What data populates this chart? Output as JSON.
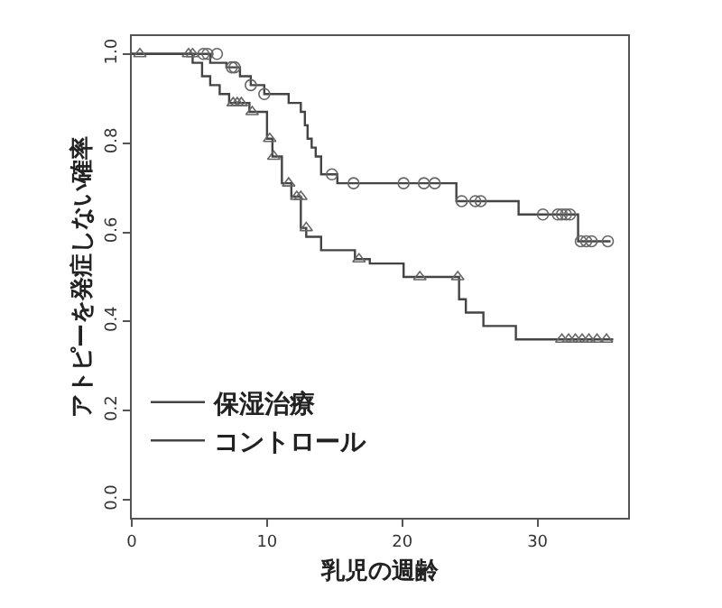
{
  "chart_data": {
    "type": "step",
    "xlabel": "乳児の週齢",
    "ylabel": "アトピーを発症しない確率",
    "xlim": [
      0,
      36.7
    ],
    "ylim": [
      -0.04,
      1.04
    ],
    "xticks": [
      0,
      10,
      20,
      30
    ],
    "yticks": [
      {
        "value": 0,
        "label": "0.0"
      },
      {
        "value": 0.2,
        "label": "0.2"
      },
      {
        "value": 0.4,
        "label": "0.4"
      },
      {
        "value": 0.6,
        "label": "0.6"
      },
      {
        "value": 0.8,
        "label": "0.8"
      },
      {
        "value": 1,
        "label": "1.0"
      }
    ],
    "legend": "bottom left",
    "line_style": "solid",
    "series": [
      {
        "name": "保湿治療",
        "color": "#444444",
        "marker": "none",
        "x": [
          0,
          5.8,
          7.0,
          8.0,
          8.8,
          9.8,
          11.6,
          12.5,
          12.8,
          13.0,
          13.3,
          13.6,
          14.0,
          15.2,
          24.0,
          28.6,
          33.0,
          35.4
        ],
        "values": [
          1.0,
          0.98,
          0.97,
          0.95,
          0.93,
          0.91,
          0.89,
          0.87,
          0.84,
          0.81,
          0.79,
          0.77,
          0.73,
          0.71,
          0.67,
          0.64,
          0.58,
          0.58
        ]
      },
      {
        "name": "コントロール",
        "color": "#444444",
        "marker": "none",
        "x": [
          0,
          4.5,
          5.2,
          5.8,
          6.5,
          7.2,
          8.7,
          10.0,
          10.4,
          11.1,
          11.8,
          12.5,
          12.9,
          14.0,
          16.5,
          17.6,
          20.1,
          24.2,
          24.7,
          26.0,
          28.4,
          35.6
        ],
        "values": [
          1.0,
          0.98,
          0.95,
          0.93,
          0.91,
          0.89,
          0.87,
          0.81,
          0.77,
          0.71,
          0.68,
          0.61,
          0.59,
          0.56,
          0.54,
          0.53,
          0.5,
          0.45,
          0.42,
          0.39,
          0.36,
          0.36
        ]
      },
      {
        "type": "scatter",
        "color": "#666666",
        "marker": "circle",
        "x": [
          5.3,
          5.6,
          6.3,
          7.4,
          7.6,
          8.8,
          9.8,
          14.8,
          16.4,
          20.1,
          21.6,
          22.4,
          24.4,
          25.4,
          25.8,
          30.4,
          31.5,
          31.8,
          32.1,
          32.4,
          33.2,
          33.6,
          34.0,
          35.2
        ],
        "values": [
          1.0,
          1.0,
          1.0,
          0.97,
          0.97,
          0.93,
          0.91,
          0.73,
          0.71,
          0.71,
          0.71,
          0.71,
          0.67,
          0.67,
          0.67,
          0.64,
          0.64,
          0.64,
          0.64,
          0.64,
          0.58,
          0.58,
          0.58,
          0.58
        ]
      },
      {
        "type": "scatter",
        "color": "#666666",
        "marker": "triangle",
        "x": [
          0.6,
          4.2,
          4.5,
          7.5,
          7.8,
          8.1,
          8.9,
          10.2,
          10.5,
          11.6,
          12.2,
          12.5,
          12.9,
          16.8,
          21.3,
          24.1,
          31.8,
          32.3,
          32.8,
          33.3,
          33.8,
          34.4,
          35.1
        ],
        "values": [
          1.0,
          1.0,
          1.0,
          0.89,
          0.89,
          0.89,
          0.87,
          0.81,
          0.77,
          0.71,
          0.68,
          0.68,
          0.61,
          0.54,
          0.5,
          0.5,
          0.36,
          0.36,
          0.36,
          0.36,
          0.36,
          0.36,
          0.36
        ]
      }
    ]
  }
}
